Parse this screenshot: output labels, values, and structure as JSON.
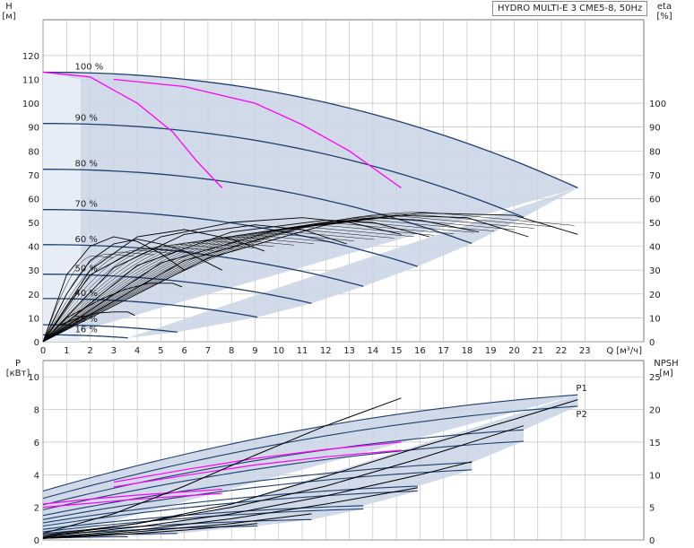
{
  "title": "HYDRO MULTI-E 3 CME5-8, 50Hz",
  "colors": {
    "region_fill": "#c9d4e4",
    "region_light": "#e6edf6",
    "curve": "#1e3f70",
    "highlight": "#ff00ff",
    "efficiency": "#000000",
    "grid": "#b8b8b8"
  },
  "chart_data": [
    {
      "type": "line",
      "name": "H-Q",
      "xlabel": "Q [м³/ч]",
      "ylabel_left": [
        "H",
        "[м]"
      ],
      "ylabel_right": [
        "eta",
        "[%]"
      ],
      "xlim": [
        0,
        25.5
      ],
      "ylim": [
        0,
        135
      ],
      "x_ticks": [
        0,
        1,
        2,
        3,
        4,
        5,
        6,
        7,
        8,
        9,
        10,
        11,
        12,
        13,
        14,
        15,
        16,
        17,
        18,
        19,
        20,
        21,
        22,
        23
      ],
      "y_ticks_left": [
        0,
        10,
        20,
        30,
        40,
        50,
        60,
        70,
        80,
        90,
        100,
        110,
        120
      ],
      "y_ticks_right": [
        0,
        10,
        20,
        30,
        40,
        50,
        60,
        70,
        80,
        90,
        100
      ],
      "grid": true,
      "speed_labels": [
        "100 %",
        "90 %",
        "80 %",
        "70 %",
        "60 %",
        "50 %",
        "40 %",
        "25 %",
        "16 %"
      ],
      "speed_curves": [
        {
          "name": "100 %",
          "h0": 113,
          "qmax": 22.7,
          "hmax": 64.5
        },
        {
          "name": "90 %",
          "h0": 91.5,
          "qmax": 20.4,
          "hmax": 52.2
        },
        {
          "name": "80 %",
          "h0": 72.3,
          "qmax": 18.2,
          "hmax": 41.2
        },
        {
          "name": "70 %",
          "h0": 55.4,
          "qmax": 15.9,
          "hmax": 31.6
        },
        {
          "name": "60 %",
          "h0": 40.7,
          "qmax": 13.6,
          "hmax": 23.2
        },
        {
          "name": "50 %",
          "h0": 28.3,
          "qmax": 11.4,
          "hmax": 16.1
        },
        {
          "name": "40 %",
          "h0": 18.1,
          "qmax": 9.1,
          "hmax": 10.3
        },
        {
          "name": "25 %",
          "h0": 7.1,
          "qmax": 5.7,
          "hmax": 4.0
        },
        {
          "name": "16 %",
          "h0": 2.9,
          "qmax": 3.6,
          "hmax": 1.6
        }
      ],
      "highlight_curves": [
        {
          "x": [
            0,
            2,
            4,
            5.5,
            6.5,
            7.6
          ],
          "y": [
            113,
            111,
            100,
            88,
            76,
            64.5
          ]
        },
        {
          "x": [
            3,
            6,
            9,
            11,
            13,
            15.2
          ],
          "y": [
            110,
            107,
            100,
            91,
            80,
            64.5
          ]
        }
      ],
      "efficiency_curves": [
        {
          "x": [
            0,
            1,
            2,
            3,
            4,
            5,
            6
          ],
          "y": [
            0,
            28,
            40,
            44,
            42,
            37,
            30
          ]
        },
        {
          "x": [
            0,
            2,
            4,
            6,
            8,
            9.4
          ],
          "y": [
            0,
            30,
            44,
            47,
            43,
            38
          ]
        },
        {
          "x": [
            0,
            3,
            6,
            9,
            11,
            12.9
          ],
          "y": [
            0,
            31,
            45,
            49,
            47,
            41
          ]
        },
        {
          "x": [
            0,
            4,
            8,
            12,
            14,
            16.4
          ],
          "y": [
            0,
            32,
            46,
            51,
            50,
            44
          ]
        },
        {
          "x": [
            0,
            5,
            10,
            14,
            16,
            18.5
          ],
          "y": [
            0,
            33,
            47,
            52,
            51,
            46
          ]
        },
        {
          "x": [
            0,
            6,
            11,
            15,
            18,
            20.6
          ],
          "y": [
            0,
            34,
            48,
            53,
            52,
            44
          ]
        },
        {
          "x": [
            0,
            7,
            12,
            16,
            20,
            22.7
          ],
          "y": [
            0,
            35,
            49,
            54,
            53,
            45
          ]
        },
        {
          "x": [
            0,
            0.7,
            1.5,
            2.3,
            3.0,
            3.6,
            3.9
          ],
          "y": [
            0,
            7,
            10,
            12,
            12.5,
            12.5,
            11
          ]
        },
        {
          "x": [
            0,
            1,
            2.5,
            3.5,
            4.5,
            5.5,
            5.9
          ],
          "y": [
            0,
            10,
            18,
            22,
            24.5,
            24.5,
            23
          ]
        },
        {
          "x": [
            0,
            1,
            2,
            3,
            4,
            5,
            6,
            7,
            7.6
          ],
          "y": [
            0,
            20,
            34,
            41,
            43,
            41,
            38,
            33,
            30
          ]
        },
        {
          "x": [
            0,
            2,
            5,
            8,
            11,
            13,
            15.2
          ],
          "y": [
            0,
            28,
            44,
            50,
            52,
            50,
            45
          ]
        }
      ],
      "eta_curve_count": 24
    },
    {
      "type": "line",
      "name": "P / NPSH",
      "ylabel_left": [
        "P",
        "[кВт]"
      ],
      "ylabel_right": [
        "NPSH",
        "[м]"
      ],
      "xlim": [
        0,
        25.5
      ],
      "ylim_left": [
        0,
        11
      ],
      "ylim_right": [
        0,
        27.5
      ],
      "y_ticks_left": [
        0,
        2,
        4,
        6,
        8,
        10
      ],
      "y_ticks_right": [
        0,
        5,
        10,
        15,
        20,
        25
      ],
      "grid": true,
      "series_labels": [
        "P1",
        "P2"
      ],
      "power_curves": [
        {
          "name": "P1",
          "y0": 3.0,
          "qmax": 22.7,
          "ymax": 8.9
        },
        {
          "name": "P2",
          "y0": 2.55,
          "qmax": 22.7,
          "ymax": 8.2
        },
        {
          "y0": 2.15,
          "qmax": 20.4,
          "ymax": 6.75
        },
        {
          "y0": 1.85,
          "qmax": 20.4,
          "ymax": 6.05
        },
        {
          "y0": 1.5,
          "qmax": 18.2,
          "ymax": 4.75
        },
        {
          "y0": 1.25,
          "qmax": 18.2,
          "ymax": 4.3
        },
        {
          "y0": 1.05,
          "qmax": 15.9,
          "ymax": 3.3
        },
        {
          "y0": 0.85,
          "qmax": 15.9,
          "ymax": 3.0
        },
        {
          "y0": 0.65,
          "qmax": 13.6,
          "ymax": 2.1
        },
        {
          "y0": 0.5,
          "qmax": 13.6,
          "ymax": 1.9
        },
        {
          "y0": 0.4,
          "qmax": 11.4,
          "ymax": 1.25
        },
        {
          "y0": 0.3,
          "qmax": 9.1,
          "ymax": 0.85
        },
        {
          "y0": 0.18,
          "qmax": 5.7,
          "ymax": 0.4
        },
        {
          "y0": 0.1,
          "qmax": 3.6,
          "ymax": 0.2
        }
      ],
      "highlight_curves": [
        {
          "x": [
            0,
            2,
            4,
            6,
            7.6
          ],
          "y": [
            2.2,
            2.5,
            2.75,
            2.95,
            3.1
          ]
        },
        {
          "x": [
            0,
            2,
            4,
            6,
            7.6
          ],
          "y": [
            2.0,
            2.25,
            2.5,
            2.7,
            2.85
          ]
        },
        {
          "x": [
            3,
            6,
            9,
            12,
            15.2
          ],
          "y": [
            3.55,
            4.3,
            5.0,
            5.55,
            6.0
          ]
        },
        {
          "x": [
            3,
            6,
            9,
            12,
            15.2
          ],
          "y": [
            3.25,
            3.95,
            4.6,
            5.1,
            5.5
          ]
        }
      ],
      "npsh_curves": [
        {
          "x": [
            0,
            4,
            8,
            12,
            16,
            20,
            22.7
          ],
          "y": [
            0.2,
            1.0,
            2.2,
            3.9,
            5.7,
            7.4,
            8.6
          ]
        },
        {
          "x": [
            0,
            3,
            6,
            9,
            12,
            15.2
          ],
          "y": [
            0.4,
            1.6,
            3.3,
            5.2,
            7.0,
            8.7
          ]
        },
        {
          "x": [
            0,
            4,
            8,
            12,
            16,
            20.4
          ],
          "y": [
            0.3,
            1.0,
            2.0,
            3.3,
            5.0,
            7.0
          ]
        },
        {
          "x": [
            0,
            4,
            8,
            12,
            16,
            18.2
          ],
          "y": [
            0.2,
            0.8,
            1.6,
            2.7,
            4.0,
            4.8
          ]
        },
        {
          "x": [
            0,
            4,
            8,
            12,
            15.9
          ],
          "y": [
            0.15,
            0.6,
            1.3,
            2.2,
            3.2
          ]
        },
        {
          "x": [
            0,
            4,
            8,
            11.4
          ],
          "y": [
            0.1,
            0.5,
            1.0,
            1.6
          ]
        },
        {
          "x": [
            0,
            3,
            6,
            9.1
          ],
          "y": [
            0.1,
            0.3,
            0.6,
            1.0
          ]
        }
      ]
    }
  ]
}
